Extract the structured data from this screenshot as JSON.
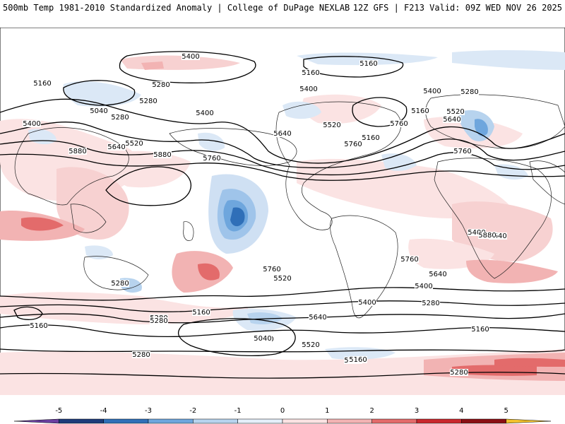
{
  "header": {
    "left": "500mb Temp 1981-2010 Standardized Anomaly | College of DuPage NEXLAB",
    "right": "12Z GFS | F213 Valid: 09Z WED NOV 26 2025"
  },
  "contour_labels": [
    "5400",
    "5160",
    "5280",
    "5160",
    "5160",
    "5040",
    "5400",
    "5280",
    "5400",
    "5640",
    "5520",
    "5760",
    "5880",
    "5760",
    "5880",
    "5160",
    "5400",
    "5520",
    "5640",
    "5160",
    "5400",
    "5280",
    "5640",
    "5520",
    "5760",
    "5280",
    "5400",
    "5760",
    "5640",
    "5760",
    "5880",
    "5640",
    "5760",
    "5400",
    "5520",
    "5400",
    "5280",
    "5160",
    "5640",
    "5400",
    "5520",
    "5280",
    "5160",
    "5040",
    "5160",
    "5280",
    "5280",
    "5160",
    "5280",
    "5160",
    "5280"
  ],
  "colorbar": {
    "ticks": [
      "-5",
      "-4",
      "-3",
      "-2",
      "-1",
      "0",
      "1",
      "2",
      "3",
      "4",
      "5"
    ],
    "colors": [
      "#6a3fa0",
      "#1d3b7a",
      "#2f6fb8",
      "#6ea6dd",
      "#b7d3ee",
      "#e4effa",
      "#fbe3e3",
      "#f2b3b3",
      "#e36b6b",
      "#c9282d",
      "#8a0f14",
      "#f2c12e"
    ]
  },
  "map_colors": {
    "ocean": "#ffffff",
    "coast": "#000000",
    "pos_light": "#fbe3e3",
    "pos_mid": "#f2b3b3",
    "pos_dark": "#e36b6b",
    "neg_light": "#dbe8f6",
    "neg_mid": "#9fc4ea",
    "neg_dark": "#2f6fb8"
  }
}
